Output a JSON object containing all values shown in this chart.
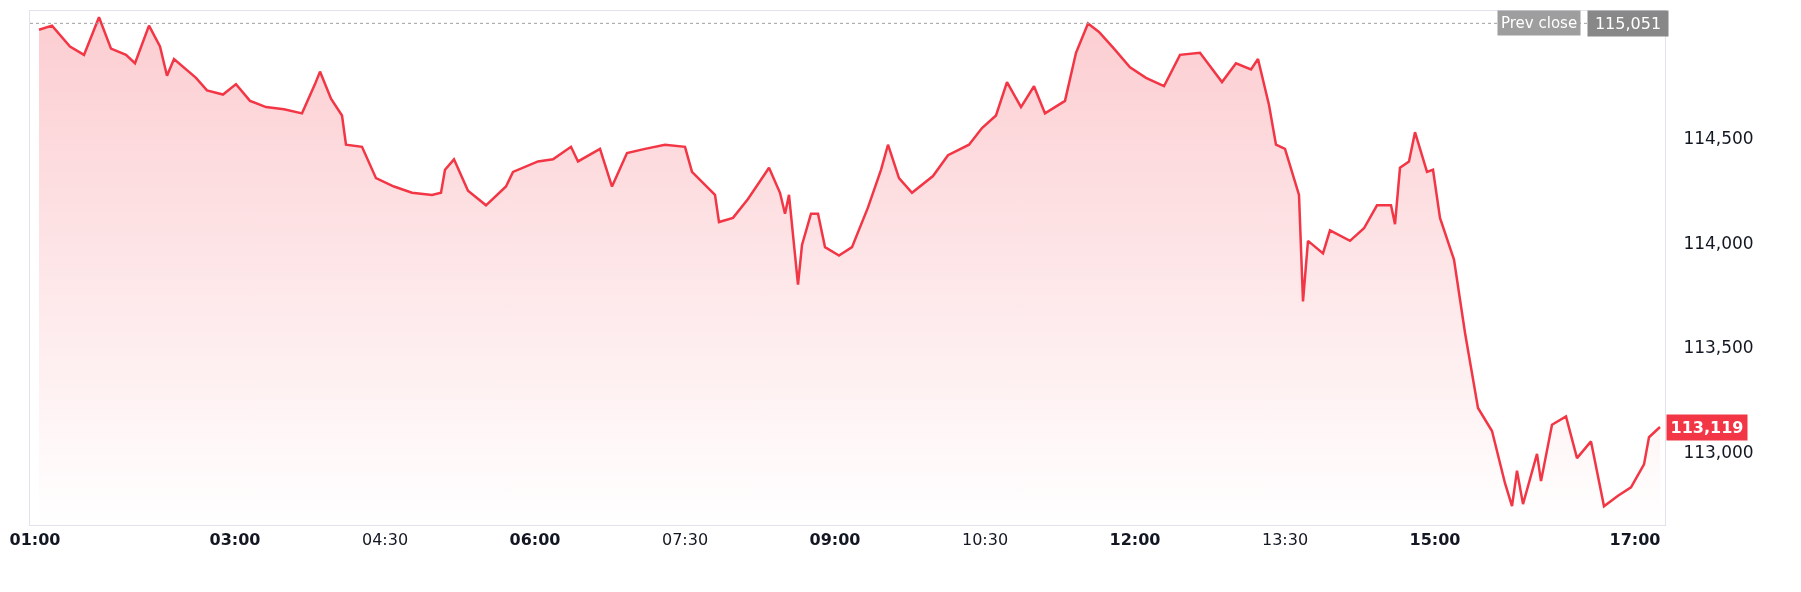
{
  "chart_data": {
    "type": "area",
    "x": [
      1.04,
      1.17,
      1.35,
      1.49,
      1.64,
      1.76,
      1.91,
      2.0,
      2.14,
      2.25,
      2.32,
      2.39,
      2.61,
      2.72,
      2.88,
      3.01,
      3.15,
      3.31,
      3.49,
      3.67,
      3.8,
      3.85,
      3.96,
      4.07,
      4.11,
      4.27,
      4.41,
      4.59,
      4.77,
      4.97,
      5.06,
      5.1,
      5.19,
      5.33,
      5.51,
      5.71,
      5.78,
      6.03,
      6.18,
      6.36,
      6.43,
      6.65,
      6.77,
      6.92,
      7.1,
      7.3,
      7.5,
      7.57,
      7.8,
      7.84,
      7.98,
      8.13,
      8.34,
      8.45,
      8.5,
      8.54,
      8.63,
      8.67,
      8.76,
      8.83,
      8.9,
      9.04,
      9.17,
      9.33,
      9.46,
      9.53,
      9.64,
      9.77,
      9.98,
      10.13,
      10.34,
      10.47,
      10.61,
      10.72,
      10.86,
      10.99,
      11.1,
      11.3,
      11.41,
      11.53,
      11.64,
      11.79,
      11.95,
      12.11,
      12.29,
      12.45,
      12.65,
      12.87,
      13.01,
      13.16,
      13.23,
      13.34,
      13.41,
      13.5,
      13.64,
      13.68,
      13.73,
      13.88,
      13.95,
      14.15,
      14.29,
      14.42,
      14.56,
      14.6,
      14.65,
      14.74,
      14.8,
      14.92,
      14.98,
      15.05,
      15.19,
      15.3,
      15.43,
      15.57,
      15.7,
      15.77,
      15.82,
      15.88,
      16.02,
      16.06,
      16.17,
      16.31,
      16.42,
      16.56,
      16.69,
      16.83,
      16.96,
      17.09,
      17.14,
      17.25
    ],
    "series": [
      {
        "color": "#f23645",
        "values": [
          115020,
          115040,
          114940,
          114900,
          115080,
          114930,
          114900,
          114860,
          115040,
          114940,
          114800,
          114880,
          114790,
          114730,
          114710,
          114760,
          114680,
          114650,
          114640,
          114620,
          114760,
          114820,
          114690,
          114610,
          114470,
          114460,
          114310,
          114270,
          114240,
          114230,
          114240,
          114350,
          114400,
          114250,
          114180,
          114270,
          114340,
          114390,
          114400,
          114460,
          114390,
          114450,
          114270,
          114430,
          114450,
          114470,
          114460,
          114340,
          114230,
          114100,
          114120,
          114210,
          114360,
          114240,
          114140,
          114230,
          113800,
          113990,
          114140,
          114140,
          113980,
          113940,
          113980,
          114170,
          114350,
          114470,
          114310,
          114240,
          114320,
          114420,
          114470,
          114550,
          114610,
          114770,
          114650,
          114750,
          114620,
          114680,
          114910,
          115050,
          115010,
          114930,
          114840,
          114790,
          114750,
          114900,
          114910,
          114770,
          114860,
          114830,
          114880,
          114660,
          114470,
          114450,
          114230,
          113720,
          114010,
          113950,
          114060,
          114010,
          114070,
          114180,
          114180,
          114090,
          114360,
          114390,
          114530,
          114340,
          114350,
          114120,
          113920,
          113570,
          113210,
          113100,
          112850,
          112740,
          112910,
          112750,
          112990,
          112860,
          113130,
          113170,
          112970,
          113050,
          112740,
          112790,
          112830,
          112940,
          113070,
          113119
        ]
      }
    ],
    "xlim": [
      0.95,
      17.3
    ],
    "xticks": [
      {
        "value": 1,
        "label": "01:00"
      },
      {
        "value": 3,
        "label": "03:00"
      },
      {
        "value": 4.5,
        "label": "04:30"
      },
      {
        "value": 6,
        "label": "06:00"
      },
      {
        "value": 7.5,
        "label": "07:30"
      },
      {
        "value": 9,
        "label": "09:00"
      },
      {
        "value": 10.5,
        "label": "10:30"
      },
      {
        "value": 12,
        "label": "12:00"
      },
      {
        "value": 13.5,
        "label": "13:30"
      },
      {
        "value": 15,
        "label": "15:00"
      },
      {
        "value": 17,
        "label": "17:00"
      }
    ],
    "ylim": [
      112650,
      115110
    ],
    "yticks": [
      {
        "value": 113000,
        "label": "113,000"
      },
      {
        "value": 113500,
        "label": "113,500"
      },
      {
        "value": 114000,
        "label": "114,000"
      },
      {
        "value": 114500,
        "label": "114,500"
      }
    ],
    "ref_lines": [
      {
        "axis": "y",
        "value": 115051,
        "label": "Prev close",
        "color": "#9e9e9e",
        "line_style": "dotted"
      }
    ],
    "annotations": [
      {
        "text": "115,051",
        "x": 17.3,
        "y": 115051
      },
      {
        "text": "113,119",
        "x": 17.25,
        "y": 113119
      }
    ]
  }
}
